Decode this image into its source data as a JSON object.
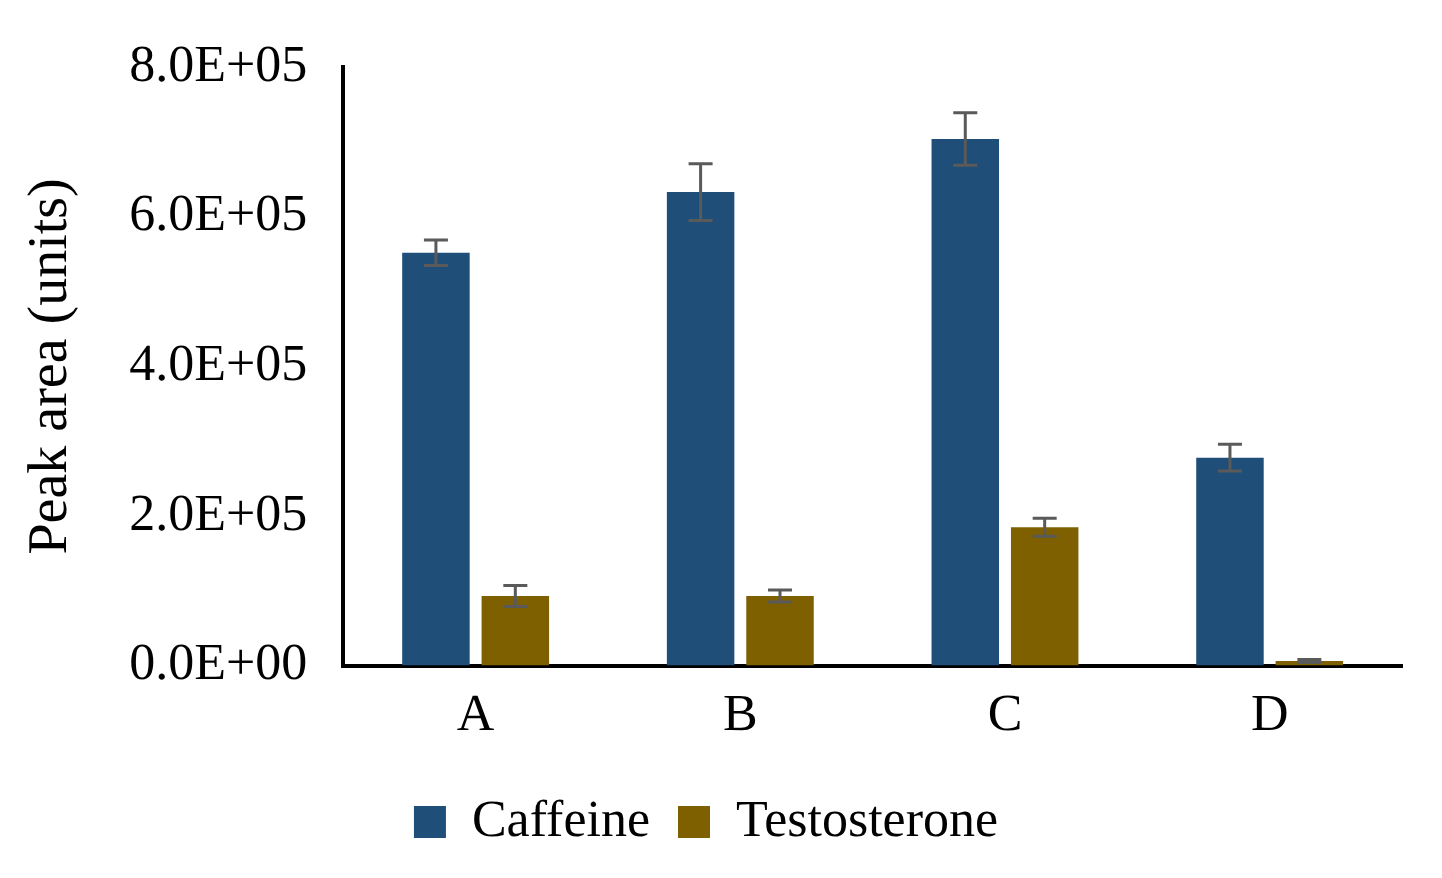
{
  "chart_data": {
    "type": "bar",
    "ylabel": "Peak area (units)",
    "categories": [
      "A",
      "B",
      "C",
      "D"
    ],
    "series": [
      {
        "name": "Caffeine",
        "color": "#1f4e79",
        "values": [
          552000,
          633000,
          704000,
          278000
        ],
        "errors": [
          17000,
          38000,
          35000,
          18000
        ]
      },
      {
        "name": "Testosterone",
        "color": "#7f6000",
        "values": [
          93000,
          93000,
          185000,
          6000
        ],
        "errors": [
          14000,
          8000,
          12000,
          2000
        ]
      }
    ],
    "ylim": [
      0,
      800000
    ],
    "yticks": [
      {
        "value": 0,
        "label": "0.0E+00"
      },
      {
        "value": 200000,
        "label": "2.0E+05"
      },
      {
        "value": 400000,
        "label": "4.0E+05"
      },
      {
        "value": 600000,
        "label": "6.0E+05"
      },
      {
        "value": 800000,
        "label": "8.0E+05"
      }
    ],
    "grid": false,
    "legend": "bottom"
  }
}
